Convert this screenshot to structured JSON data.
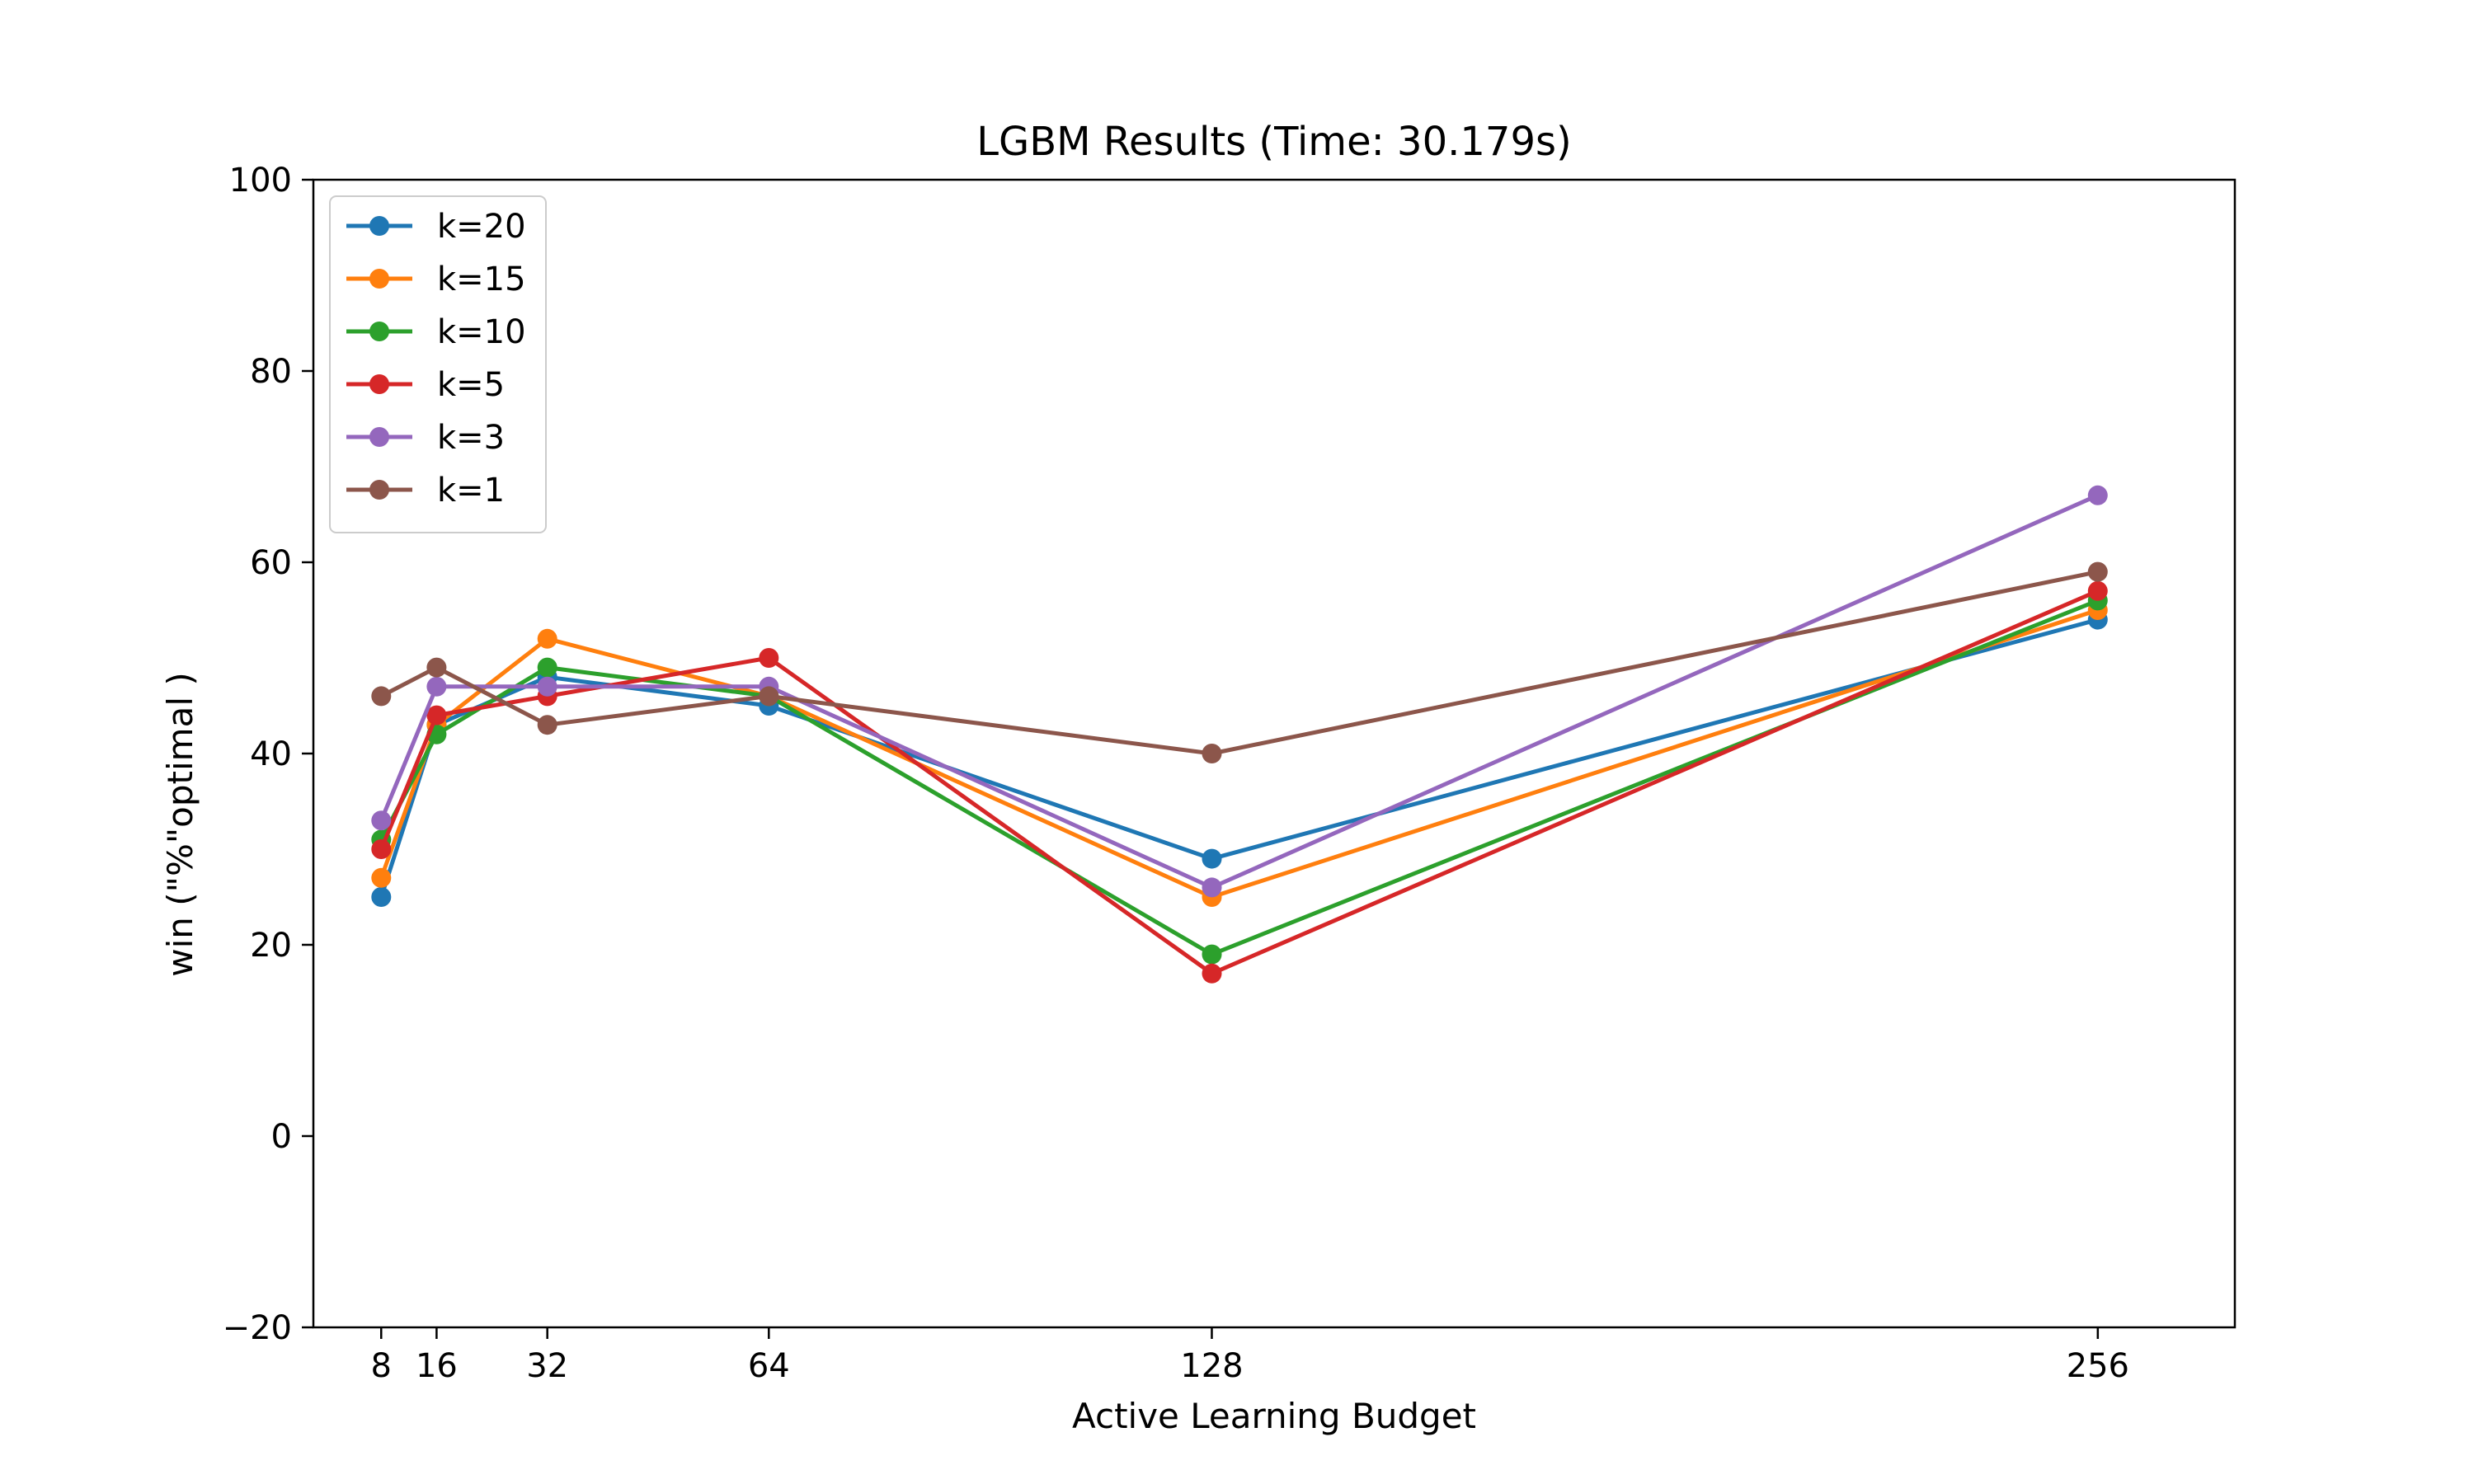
{
  "chart_data": {
    "type": "line",
    "title": "LGBM Results (Time: 30.179s)",
    "xlabel": "Active Learning Budget",
    "ylabel": "win (\"%\"optimal )",
    "x": [
      8,
      16,
      32,
      64,
      128,
      256
    ],
    "x_tick_labels": [
      "8",
      "16",
      "32",
      "64",
      "128",
      "256"
    ],
    "xlim": [
      -1.8,
      275.8
    ],
    "ylim": [
      -20,
      100
    ],
    "y_ticks": [
      -20,
      0,
      20,
      40,
      60,
      80,
      100
    ],
    "y_tick_labels": [
      "−20",
      "0",
      "20",
      "40",
      "60",
      "80",
      "100"
    ],
    "grid": false,
    "legend_position": "upper-left",
    "series": [
      {
        "name": "k=20",
        "color": "#1f77b4",
        "values": [
          25,
          43,
          48,
          45,
          29,
          54
        ]
      },
      {
        "name": "k=15",
        "color": "#ff7f0e",
        "values": [
          27,
          43,
          52,
          46,
          25,
          55
        ]
      },
      {
        "name": "k=10",
        "color": "#2ca02c",
        "values": [
          31,
          42,
          49,
          46,
          19,
          56
        ]
      },
      {
        "name": "k=5",
        "color": "#d62728",
        "values": [
          30,
          44,
          46,
          50,
          17,
          57
        ]
      },
      {
        "name": "k=3",
        "color": "#9467bd",
        "values": [
          33,
          47,
          47,
          47,
          26,
          67
        ]
      },
      {
        "name": "k=1",
        "color": "#8c564b",
        "values": [
          46,
          49,
          43,
          46,
          40,
          59
        ]
      }
    ]
  }
}
